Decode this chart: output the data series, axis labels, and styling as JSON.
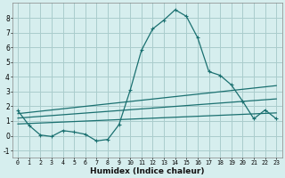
{
  "xlabel": "Humidex (Indice chaleur)",
  "background_color": "#d6eeee",
  "grid_color": "#aacccc",
  "line_color": "#1a7070",
  "xlim": [
    -0.5,
    23.5
  ],
  "ylim": [
    -1.5,
    9.0
  ],
  "xticks": [
    0,
    1,
    2,
    3,
    4,
    5,
    6,
    7,
    8,
    9,
    10,
    11,
    12,
    13,
    14,
    15,
    16,
    17,
    18,
    19,
    20,
    21,
    22,
    23
  ],
  "yticks": [
    -1,
    0,
    1,
    2,
    3,
    4,
    5,
    6,
    7,
    8
  ],
  "series_main": {
    "x": [
      0,
      1,
      2,
      3,
      4,
      5,
      6,
      7,
      8,
      9,
      10,
      11,
      12,
      13,
      14,
      15,
      16,
      17,
      18,
      19,
      20,
      21,
      22,
      23
    ],
    "y": [
      1.7,
      0.7,
      0.05,
      -0.05,
      0.35,
      0.25,
      0.1,
      -0.35,
      -0.25,
      0.75,
      3.1,
      5.8,
      7.25,
      7.85,
      8.55,
      8.1,
      6.65,
      4.35,
      4.1,
      3.45,
      2.35,
      1.15,
      1.75,
      1.15
    ]
  },
  "series_lines": [
    {
      "x": [
        0,
        23
      ],
      "y": [
        1.5,
        3.4
      ]
    },
    {
      "x": [
        0,
        23
      ],
      "y": [
        1.2,
        2.5
      ]
    },
    {
      "x": [
        0,
        23
      ],
      "y": [
        0.8,
        1.55
      ]
    }
  ]
}
